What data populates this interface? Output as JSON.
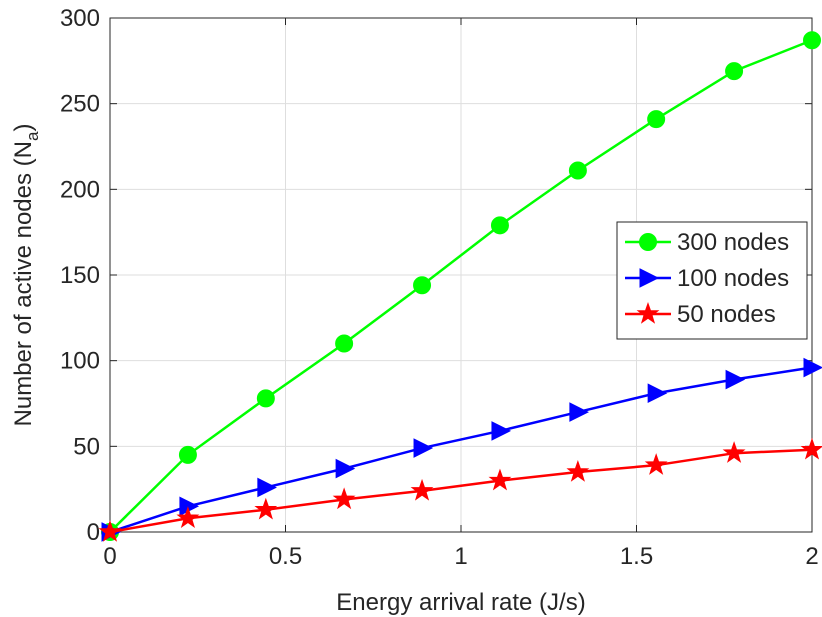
{
  "chart_data": {
    "type": "line",
    "title": "",
    "xlabel": "Energy arrival rate (J/s)",
    "ylabel_main": "Number of active nodes (N",
    "ylabel_sub": "a",
    "ylabel_close": ")",
    "xlim": [
      0,
      2
    ],
    "ylim": [
      0,
      300
    ],
    "xticks": [
      0,
      0.5,
      1,
      1.5,
      2
    ],
    "xtick_labels": [
      "0",
      "0.5",
      "1",
      "1.5",
      "2"
    ],
    "yticks": [
      0,
      50,
      100,
      150,
      200,
      250,
      300
    ],
    "ytick_labels": [
      "0",
      "50",
      "100",
      "150",
      "200",
      "250",
      "300"
    ],
    "grid": true,
    "legend_location": "right",
    "x": [
      0,
      0.222,
      0.444,
      0.667,
      0.889,
      1.111,
      1.333,
      1.556,
      1.778,
      2.0
    ],
    "series": [
      {
        "name": "300 nodes",
        "color": "#00ff00",
        "marker": "circle",
        "values": [
          0,
          45,
          78,
          110,
          144,
          179,
          211,
          241,
          269,
          287
        ]
      },
      {
        "name": "100 nodes",
        "color": "#0000ff",
        "marker": "triangle-right",
        "values": [
          0,
          15,
          26,
          37,
          49,
          59,
          70,
          81,
          89,
          96
        ]
      },
      {
        "name": "50 nodes",
        "color": "#ff0000",
        "marker": "star",
        "values": [
          0,
          8,
          13,
          19,
          24,
          30,
          35,
          39,
          46,
          48
        ]
      }
    ]
  }
}
